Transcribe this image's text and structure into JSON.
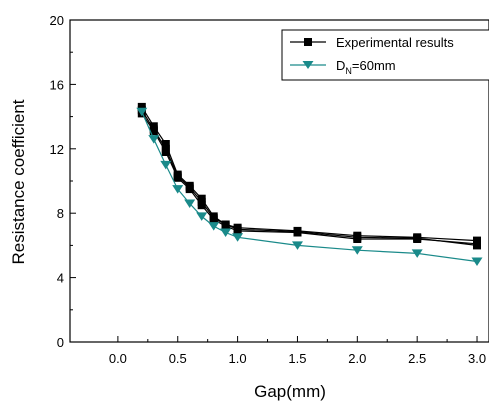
{
  "chart_data": {
    "type": "line",
    "title": "",
    "xlabel": "Gap(mm)",
    "ylabel": "Resistance coefficient",
    "xlim": [
      -0.4,
      3.1
    ],
    "ylim": [
      0,
      20
    ],
    "xticks": [
      "0.0",
      "0.5",
      "1.0",
      "1.5",
      "2.0",
      "2.5",
      "3.0"
    ],
    "yticks": [
      "0",
      "4",
      "8",
      "12",
      "16",
      "20"
    ],
    "grid": false,
    "legend_position": "top-right",
    "series": [
      {
        "name": "Experimental results",
        "legend_main": "Experimental results",
        "color": "#000000",
        "marker": "square",
        "runs": [
          [
            [
              0.2,
              14.6
            ],
            [
              0.3,
              13.4
            ],
            [
              0.4,
              12.3
            ],
            [
              0.5,
              10.4
            ],
            [
              0.6,
              9.7
            ],
            [
              0.7,
              8.9
            ],
            [
              0.8,
              7.8
            ],
            [
              0.9,
              7.3
            ],
            [
              1.0,
              7.1
            ],
            [
              1.5,
              6.9
            ],
            [
              2.0,
              6.6
            ],
            [
              2.5,
              6.5
            ],
            [
              3.0,
              6.3
            ]
          ],
          [
            [
              0.2,
              14.2
            ],
            [
              0.3,
              13.1
            ],
            [
              0.4,
              11.8
            ],
            [
              0.5,
              10.2
            ],
            [
              0.6,
              9.5
            ],
            [
              0.7,
              8.5
            ],
            [
              0.8,
              7.6
            ],
            [
              0.9,
              7.2
            ],
            [
              1.0,
              6.9
            ],
            [
              1.5,
              6.8
            ],
            [
              2.0,
              6.4
            ],
            [
              2.5,
              6.4
            ],
            [
              3.0,
              6.1
            ]
          ],
          [
            [
              0.2,
              14.4
            ],
            [
              0.3,
              13.2
            ],
            [
              0.4,
              12.0
            ],
            [
              0.5,
              10.3
            ],
            [
              0.6,
              9.6
            ],
            [
              0.7,
              8.7
            ],
            [
              0.8,
              7.7
            ],
            [
              0.9,
              7.3
            ],
            [
              1.0,
              7.0
            ],
            [
              1.5,
              6.85
            ],
            [
              2.0,
              6.5
            ],
            [
              2.5,
              6.45
            ],
            [
              3.0,
              6.0
            ]
          ]
        ]
      },
      {
        "name": "DN=60mm",
        "legend_main": "D",
        "legend_sub": "N",
        "legend_rest": "=60mm",
        "color": "#1a8a8a",
        "marker": "triangle-down",
        "runs": [
          [
            [
              0.2,
              14.3
            ],
            [
              0.3,
              12.6
            ],
            [
              0.4,
              11.0
            ],
            [
              0.5,
              9.5
            ],
            [
              0.6,
              8.6
            ],
            [
              0.7,
              7.8
            ],
            [
              0.8,
              7.2
            ],
            [
              0.9,
              6.8
            ],
            [
              1.0,
              6.5
            ],
            [
              1.5,
              6.0
            ],
            [
              2.0,
              5.7
            ],
            [
              2.5,
              5.5
            ],
            [
              3.0,
              5.0
            ]
          ]
        ]
      }
    ]
  }
}
